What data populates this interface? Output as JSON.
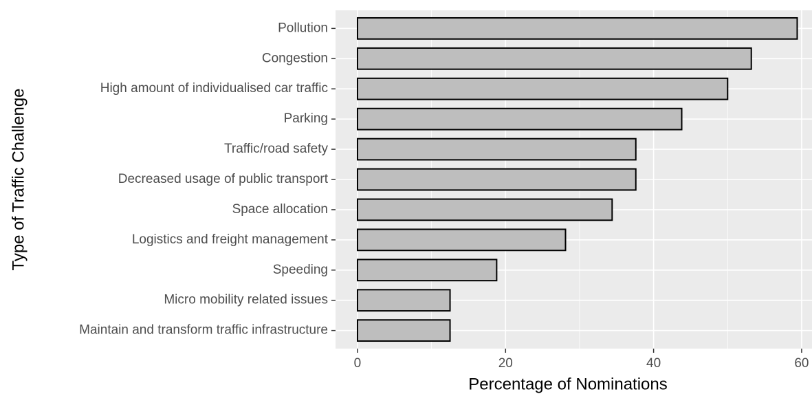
{
  "chart_data": {
    "type": "barh",
    "xlabel": "Percentage of Nominations",
    "ylabel": "Type of Traffic Challenge",
    "categories": [
      "Pollution",
      "Congestion",
      "High amount of individualised car traffic",
      "Parking",
      "Traffic/road safety",
      "Decreased usage of public transport",
      "Space allocation",
      "Logistics and freight management",
      "Speeding",
      "Micro mobility related issues",
      "Maintain and transform traffic infrastructure"
    ],
    "values": [
      59.4,
      53.2,
      50.0,
      43.8,
      37.6,
      37.6,
      34.4,
      28.1,
      18.8,
      12.5,
      12.5
    ],
    "color": "#bebebe",
    "edgecolor": "#000000",
    "xlim": [
      -2.97,
      61.4
    ],
    "xticks": [
      0,
      20,
      40,
      60
    ],
    "xminor": [
      10,
      30,
      50
    ],
    "grid": true,
    "background": "#ebebeb"
  }
}
